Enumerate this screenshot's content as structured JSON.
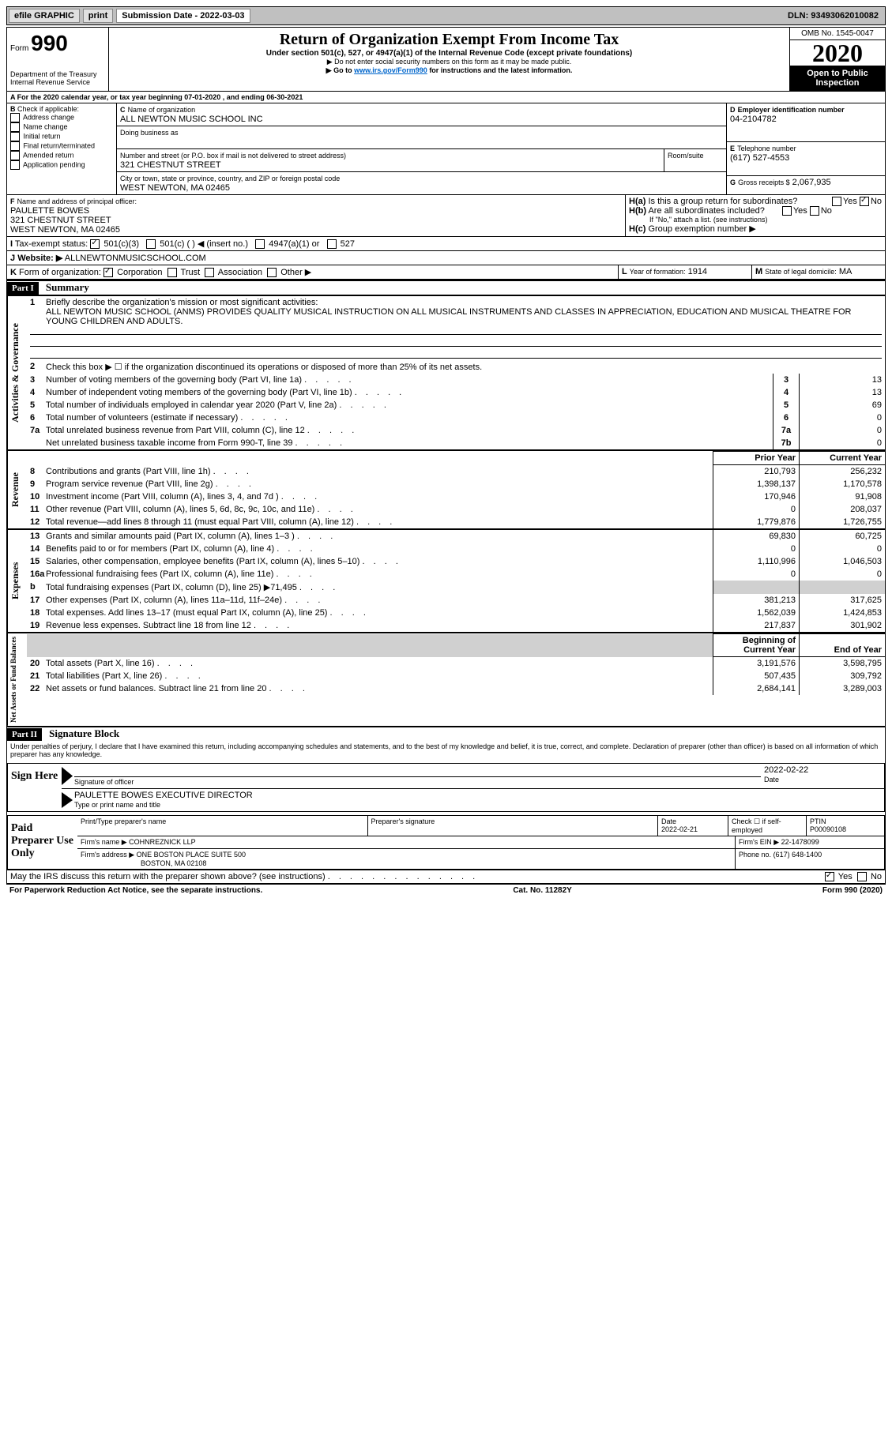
{
  "topbar": {
    "efile": "efile GRAPHIC",
    "print": "print",
    "sub_label": "Submission Date - ",
    "sub_date": "2022-03-03",
    "dln_label": "DLN: ",
    "dln": "93493062010082"
  },
  "header": {
    "form_prefix": "Form",
    "form_num": "990",
    "dept1": "Department of the Treasury",
    "dept2": "Internal Revenue Service",
    "title": "Return of Organization Exempt From Income Tax",
    "subtitle": "Under section 501(c), 527, or 4947(a)(1) of the Internal Revenue Code (except private foundations)",
    "note1": "▶ Do not enter social security numbers on this form as it may be made public.",
    "note2_pre": "▶ Go to ",
    "note2_link": "www.irs.gov/Form990",
    "note2_post": " for instructions and the latest information.",
    "omb": "OMB No. 1545-0047",
    "year": "2020",
    "open": "Open to Public Inspection"
  },
  "period": {
    "line_a": "For the 2020 calendar year, or tax year beginning 07-01-2020    , and ending 06-30-2021"
  },
  "boxB": {
    "label": "Check if applicable:",
    "opts": [
      "Address change",
      "Name change",
      "Initial return",
      "Final return/terminated",
      "Amended return",
      "Application pending"
    ]
  },
  "boxC": {
    "name_label": "Name of organization",
    "name": "ALL NEWTON MUSIC SCHOOL INC",
    "dba_label": "Doing business as",
    "street_label": "Number and street (or P.O. box if mail is not delivered to street address)",
    "room_label": "Room/suite",
    "street": "321 CHESTNUT STREET",
    "city_label": "City or town, state or province, country, and ZIP or foreign postal code",
    "city": "WEST NEWTON, MA  02465"
  },
  "boxD": {
    "label": "Employer identification number",
    "val": "04-2104782"
  },
  "boxE": {
    "label": "Telephone number",
    "val": "(617) 527-4553"
  },
  "boxG": {
    "label": "Gross receipts $",
    "val": "2,067,935"
  },
  "boxF": {
    "label": "Name and address of principal officer:",
    "name": "PAULETTE BOWES",
    "addr1": "321 CHESTNUT STREET",
    "addr2": "WEST NEWTON, MA  02465"
  },
  "boxH": {
    "a_label": "Is this a group return for subordinates?",
    "b_label": "Are all subordinates included?",
    "b_note": "If \"No,\" attach a list. (see instructions)",
    "c_label": "Group exemption number ▶",
    "yes": "Yes",
    "no": "No"
  },
  "boxI": {
    "label": "Tax-exempt status:",
    "opts": [
      "501(c)(3)",
      "501(c) (  ) ◀ (insert no.)",
      "4947(a)(1) or",
      "527"
    ]
  },
  "boxJ": {
    "label": "Website: ▶",
    "val": "ALLNEWTONMUSICSCHOOL.COM"
  },
  "boxK": {
    "label": "Form of organization:",
    "opts": [
      "Corporation",
      "Trust",
      "Association",
      "Other ▶"
    ]
  },
  "boxL": {
    "label": "Year of formation:",
    "val": "1914"
  },
  "boxM": {
    "label": "State of legal domicile:",
    "val": "MA"
  },
  "part1": {
    "hdr": "Part I",
    "title": "Summary",
    "q1_label": "Briefly describe the organization's mission or most significant activities:",
    "q1_text": "ALL NEWTON MUSIC SCHOOL (ANMS) PROVIDES QUALITY MUSICAL INSTRUCTION ON ALL MUSICAL INSTRUMENTS AND CLASSES IN APPRECIATION, EDUCATION AND MUSICAL THEATRE FOR YOUNG CHILDREN AND ADULTS.",
    "q2": "Check this box ▶ ☐ if the organization discontinued its operations or disposed of more than 25% of its net assets.",
    "lines_gov": [
      {
        "n": "3",
        "t": "Number of voting members of the governing body (Part VI, line 1a)",
        "box": "3",
        "v": "13"
      },
      {
        "n": "4",
        "t": "Number of independent voting members of the governing body (Part VI, line 1b)",
        "box": "4",
        "v": "13"
      },
      {
        "n": "5",
        "t": "Total number of individuals employed in calendar year 2020 (Part V, line 2a)",
        "box": "5",
        "v": "69"
      },
      {
        "n": "6",
        "t": "Total number of volunteers (estimate if necessary)",
        "box": "6",
        "v": "0"
      },
      {
        "n": "7a",
        "t": "Total unrelated business revenue from Part VIII, column (C), line 12",
        "box": "7a",
        "v": "0"
      },
      {
        "n": "",
        "t": "Net unrelated business taxable income from Form 990-T, line 39",
        "box": "7b",
        "v": "0"
      }
    ],
    "prior_label": "Prior Year",
    "current_label": "Current Year",
    "b_label": "b",
    "lines_rev": [
      {
        "n": "8",
        "t": "Contributions and grants (Part VIII, line 1h)",
        "p": "210,793",
        "c": "256,232"
      },
      {
        "n": "9",
        "t": "Program service revenue (Part VIII, line 2g)",
        "p": "1,398,137",
        "c": "1,170,578"
      },
      {
        "n": "10",
        "t": "Investment income (Part VIII, column (A), lines 3, 4, and 7d )",
        "p": "170,946",
        "c": "91,908"
      },
      {
        "n": "11",
        "t": "Other revenue (Part VIII, column (A), lines 5, 6d, 8c, 9c, 10c, and 11e)",
        "p": "0",
        "c": "208,037"
      },
      {
        "n": "12",
        "t": "Total revenue—add lines 8 through 11 (must equal Part VIII, column (A), line 12)",
        "p": "1,779,876",
        "c": "1,726,755"
      }
    ],
    "lines_exp": [
      {
        "n": "13",
        "t": "Grants and similar amounts paid (Part IX, column (A), lines 1–3 )",
        "p": "69,830",
        "c": "60,725"
      },
      {
        "n": "14",
        "t": "Benefits paid to or for members (Part IX, column (A), line 4)",
        "p": "0",
        "c": "0"
      },
      {
        "n": "15",
        "t": "Salaries, other compensation, employee benefits (Part IX, column (A), lines 5–10)",
        "p": "1,110,996",
        "c": "1,046,503"
      },
      {
        "n": "16a",
        "t": "Professional fundraising fees (Part IX, column (A), line 11e)",
        "p": "0",
        "c": "0"
      },
      {
        "n": "b",
        "t": "Total fundraising expenses (Part IX, column (D), line 25) ▶71,495",
        "p": "",
        "c": "",
        "shade": true
      },
      {
        "n": "17",
        "t": "Other expenses (Part IX, column (A), lines 11a–11d, 11f–24e)",
        "p": "381,213",
        "c": "317,625"
      },
      {
        "n": "18",
        "t": "Total expenses. Add lines 13–17 (must equal Part IX, column (A), line 25)",
        "p": "1,562,039",
        "c": "1,424,853"
      },
      {
        "n": "19",
        "t": "Revenue less expenses. Subtract line 18 from line 12",
        "p": "217,837",
        "c": "301,902"
      }
    ],
    "bcy_label": "Beginning of Current Year",
    "eoy_label": "End of Year",
    "lines_net": [
      {
        "n": "20",
        "t": "Total assets (Part X, line 16)",
        "p": "3,191,576",
        "c": "3,598,795"
      },
      {
        "n": "21",
        "t": "Total liabilities (Part X, line 26)",
        "p": "507,435",
        "c": "309,792"
      },
      {
        "n": "22",
        "t": "Net assets or fund balances. Subtract line 21 from line 20",
        "p": "2,684,141",
        "c": "3,289,003"
      }
    ],
    "vert_gov": "Activities & Governance",
    "vert_rev": "Revenue",
    "vert_exp": "Expenses",
    "vert_net": "Net Assets or Fund Balances"
  },
  "part2": {
    "hdr": "Part II",
    "title": "Signature Block",
    "decl": "Under penalties of perjury, I declare that I have examined this return, including accompanying schedules and statements, and to the best of my knowledge and belief, it is true, correct, and complete. Declaration of preparer (other than officer) is based on all information of which preparer has any knowledge.",
    "sign_here": "Sign Here",
    "sig_officer": "Signature of officer",
    "sig_date": "2022-02-22",
    "date_label": "Date",
    "officer_name": "PAULETTE BOWES  EXECUTIVE DIRECTOR",
    "type_label": "Type or print name and title",
    "paid_label": "Paid Preparer Use Only",
    "prep_name_label": "Print/Type preparer's name",
    "prep_sig_label": "Preparer's signature",
    "prep_date_label": "Date",
    "prep_date": "2022-02-21",
    "check_self": "Check ☐ if self-employed",
    "ptin_label": "PTIN",
    "ptin": "P00090108",
    "firm_name_label": "Firm's name    ▶",
    "firm_name": "COHNREZNICK LLP",
    "firm_ein_label": "Firm's EIN ▶",
    "firm_ein": "22-1478099",
    "firm_addr_label": "Firm's address ▶",
    "firm_addr1": "ONE BOSTON PLACE SUITE 500",
    "firm_addr2": "BOSTON, MA  02108",
    "phone_label": "Phone no.",
    "phone": "(617) 648-1400",
    "discuss": "May the IRS discuss this return with the preparer shown above? (see instructions)",
    "yes": "Yes",
    "no": "No"
  },
  "footer": {
    "pra": "For Paperwork Reduction Act Notice, see the separate instructions.",
    "cat": "Cat. No. 11282Y",
    "form": "Form 990 (2020)"
  }
}
